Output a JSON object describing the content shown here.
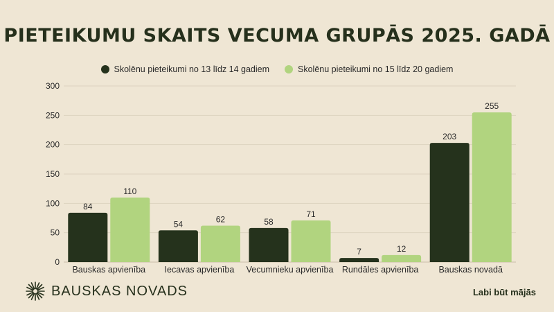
{
  "title": "PIETEIKUMU SKAITS VECUMA GRUPĀS 2025. GADĀ",
  "colors": {
    "background": "#efe6d4",
    "series1": "#25321c",
    "series2": "#b1d47f",
    "grid": "#ddd3bf",
    "text": "#26301c"
  },
  "chart_data": {
    "type": "bar",
    "categories": [
      "Bauskas apvienība",
      "Iecavas apvienība",
      "Vecumnieku apvienība",
      "Rundāles apvienība",
      "Bauskas novadā"
    ],
    "series": [
      {
        "name": "Skolēnu pieteikumi no 13 līdz 14 gadiem",
        "values": [
          84,
          54,
          58,
          7,
          203
        ]
      },
      {
        "name": "Skolēnu pieteikumi no 15 līdz 20 gadiem",
        "values": [
          110,
          62,
          71,
          12,
          255
        ]
      }
    ],
    "yticks": [
      0,
      50,
      100,
      150,
      200,
      250,
      300
    ],
    "ylim": [
      0,
      300
    ],
    "grid": true,
    "legend_position": "top-center"
  },
  "footer": {
    "logo_text": "BAUSKAS NOVADS",
    "logo_icon": "sun-burst-icon",
    "slogan": "Labi būt mājās"
  }
}
